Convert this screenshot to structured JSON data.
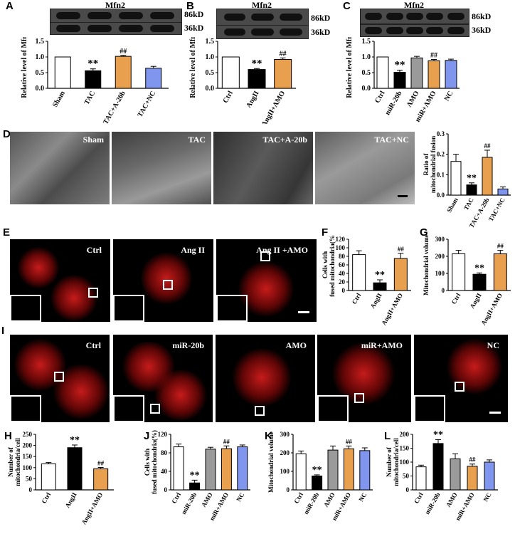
{
  "panels": {
    "A": {
      "letter": "A",
      "title": "Mfn2",
      "kd_top": "86kD",
      "kd_bottom": "36kD"
    },
    "B": {
      "letter": "B",
      "title": "Mfn2",
      "kd_top": "86kD",
      "kd_bottom": "36kD"
    },
    "C": {
      "letter": "C",
      "title": "Mfn2",
      "kd_top": "86kD",
      "kd_bottom": "36kD"
    },
    "D": {
      "letter": "D",
      "images": [
        "Sham",
        "TAC",
        "TAC+A-20b",
        "TAC+NC"
      ]
    },
    "E": {
      "letter": "E",
      "images": [
        "Ctrl",
        "Ang II",
        "Ang II +AMO"
      ]
    },
    "F": {
      "letter": "F"
    },
    "G": {
      "letter": "G"
    },
    "I": {
      "letter": "I",
      "images": [
        "Ctrl",
        "miR-20b",
        "AMO",
        "miR+AMO",
        "NC"
      ]
    },
    "H": {
      "letter": "H"
    },
    "J": {
      "letter": "J"
    },
    "K": {
      "letter": "K"
    },
    "L": {
      "letter": "L"
    }
  },
  "colors": {
    "white": "#ffffff",
    "black": "#000000",
    "orange": "#e8a04e",
    "gray": "#9a9a9a",
    "blue": "#7f95ee"
  },
  "chart_data": [
    {
      "id": "A",
      "type": "bar",
      "categories": [
        "Sham",
        "TAC",
        "TAC+A-20b",
        "TAC+NC"
      ],
      "values": [
        1.0,
        0.56,
        1.02,
        0.64
      ],
      "errors": [
        0,
        0.06,
        0.03,
        0.06
      ],
      "colors": [
        "#ffffff",
        "#000000",
        "#e8a04e",
        "#7f95ee"
      ],
      "ylabel": "Relative level of Mfn2",
      "ylim": [
        0,
        1.5
      ],
      "yticks": [
        0.0,
        0.5,
        1.0,
        1.5
      ],
      "ytick_labels": [
        "0.0",
        "0.5",
        "1.0",
        "1.5"
      ],
      "annotations": [
        "",
        "**",
        "##",
        ""
      ]
    },
    {
      "id": "B",
      "type": "bar",
      "categories": [
        "Ctrl",
        "AngII",
        "AngII+AMO"
      ],
      "values": [
        1.0,
        0.6,
        0.92
      ],
      "errors": [
        0,
        0.03,
        0.05
      ],
      "colors": [
        "#ffffff",
        "#000000",
        "#e8a04e"
      ],
      "ylabel": "Relative level of Mfn2",
      "ylim": [
        0,
        1.5
      ],
      "yticks": [
        0.0,
        0.5,
        1.0,
        1.5
      ],
      "ytick_labels": [
        "0.0",
        "0.5",
        "1.0",
        "1.5"
      ],
      "annotations": [
        "",
        "**",
        "##"
      ]
    },
    {
      "id": "C",
      "type": "bar",
      "categories": [
        "Ctrl",
        "miR-20b",
        "AMO",
        "miR+AMO",
        "NC"
      ],
      "values": [
        1.0,
        0.51,
        0.97,
        0.88,
        0.89
      ],
      "errors": [
        0,
        0.07,
        0.05,
        0.04,
        0.04
      ],
      "colors": [
        "#ffffff",
        "#000000",
        "#9a9a9a",
        "#e8a04e",
        "#7f95ee"
      ],
      "ylabel": "Relative level of Mfn2",
      "ylim": [
        0,
        1.5
      ],
      "yticks": [
        0.0,
        0.5,
        1.0,
        1.5
      ],
      "ytick_labels": [
        "0.0",
        "0.5",
        "1.0",
        "1.5"
      ],
      "annotations": [
        "",
        "**",
        "",
        "##",
        ""
      ]
    },
    {
      "id": "D",
      "type": "bar",
      "categories": [
        "Sham",
        "TAC",
        "TAC+A-20b",
        "TAC+NC"
      ],
      "values": [
        0.165,
        0.05,
        0.185,
        0.03
      ],
      "errors": [
        0.035,
        0.01,
        0.035,
        0.01
      ],
      "colors": [
        "#ffffff",
        "#000000",
        "#e8a04e",
        "#7f95ee"
      ],
      "ylabel": "Ratio of mitochondrial fusion",
      "ylim": [
        0,
        0.3
      ],
      "yticks": [
        0.0,
        0.1,
        0.2,
        0.3
      ],
      "ytick_labels": [
        "0.0",
        "0.1",
        "0.2",
        "0.3"
      ],
      "annotations": [
        "",
        "**",
        "##",
        ""
      ]
    },
    {
      "id": "F",
      "type": "bar",
      "categories": [
        "Ctrl",
        "AngII",
        "AngII+AMO"
      ],
      "values": [
        84,
        18,
        75
      ],
      "errors": [
        9,
        7,
        12
      ],
      "colors": [
        "#ffffff",
        "#000000",
        "#e8a04e"
      ],
      "ylabel": "Cells with fused mitochondria(%)",
      "ylim": [
        0,
        120
      ],
      "yticks": [
        0,
        20,
        40,
        60,
        80,
        100,
        120
      ],
      "ytick_labels": [
        "0",
        "20",
        "40",
        "60",
        "80",
        "100",
        "120"
      ],
      "annotations": [
        "",
        "**",
        "##"
      ]
    },
    {
      "id": "G",
      "type": "bar",
      "categories": [
        "Ctrl",
        "AngII",
        "AngII+AMO"
      ],
      "values": [
        215,
        95,
        215
      ],
      "errors": [
        20,
        8,
        20
      ],
      "colors": [
        "#ffffff",
        "#000000",
        "#e8a04e"
      ],
      "ylabel": "Mitochondrial volume",
      "ylim": [
        0,
        300
      ],
      "yticks": [
        0,
        100,
        200,
        300
      ],
      "ytick_labels": [
        "0",
        "100",
        "200",
        "300"
      ],
      "annotations": [
        "",
        "**",
        "##"
      ]
    },
    {
      "id": "H",
      "type": "bar",
      "categories": [
        "Ctrl",
        "AngII",
        "AngII+AMO"
      ],
      "values": [
        117,
        190,
        95
      ],
      "errors": [
        6,
        12,
        6
      ],
      "colors": [
        "#ffffff",
        "#000000",
        "#e8a04e"
      ],
      "ylabel": "Number of mitochondria/cell",
      "ylim": [
        0,
        250
      ],
      "yticks": [
        0,
        50,
        100,
        150,
        200,
        250
      ],
      "ytick_labels": [
        "0",
        "50",
        "100",
        "150",
        "200",
        "250"
      ],
      "annotations": [
        "",
        "**",
        "##"
      ]
    },
    {
      "id": "J",
      "type": "bar",
      "categories": [
        "Ctrl",
        "miR-20b",
        "AMO",
        "miR+AMO",
        "NC"
      ],
      "values": [
        93,
        15,
        88,
        89,
        93
      ],
      "errors": [
        6,
        6,
        4,
        6,
        4
      ],
      "colors": [
        "#ffffff",
        "#000000",
        "#9a9a9a",
        "#e8a04e",
        "#7f95ee"
      ],
      "ylabel": "Cells with fused mitochondria(%)",
      "ylim": [
        0,
        120
      ],
      "yticks": [
        0,
        40,
        80,
        120
      ],
      "ytick_labels": [
        "0",
        "40",
        "80",
        "120"
      ],
      "annotations": [
        "",
        "**",
        "",
        "##",
        ""
      ]
    },
    {
      "id": "K",
      "type": "bar",
      "categories": [
        "Ctrl",
        "miR-20b",
        "AMO",
        "miR+AMO",
        "NC"
      ],
      "values": [
        195,
        75,
        215,
        222,
        212
      ],
      "errors": [
        15,
        6,
        22,
        15,
        15
      ],
      "colors": [
        "#ffffff",
        "#000000",
        "#9a9a9a",
        "#e8a04e",
        "#7f95ee"
      ],
      "ylabel": "Mitochondrial volume",
      "ylim": [
        0,
        300
      ],
      "yticks": [
        0,
        100,
        200,
        300
      ],
      "ytick_labels": [
        "0",
        "100",
        "200",
        "300"
      ],
      "annotations": [
        "",
        "**",
        "",
        "##",
        ""
      ]
    },
    {
      "id": "L",
      "type": "bar",
      "categories": [
        "Ctrl",
        "miR-20b",
        "AMO",
        "miR+AMO",
        "NC"
      ],
      "values": [
        83,
        167,
        112,
        85,
        100
      ],
      "errors": [
        6,
        14,
        18,
        8,
        8
      ],
      "colors": [
        "#ffffff",
        "#000000",
        "#9a9a9a",
        "#e8a04e",
        "#7f95ee"
      ],
      "ylabel": "Number of mitochondria/cell",
      "ylim": [
        0,
        200
      ],
      "yticks": [
        0,
        50,
        100,
        150,
        200
      ],
      "ytick_labels": [
        "0",
        "50",
        "100",
        "150",
        "200"
      ],
      "annotations": [
        "",
        "**",
        "",
        "##",
        ""
      ]
    }
  ]
}
